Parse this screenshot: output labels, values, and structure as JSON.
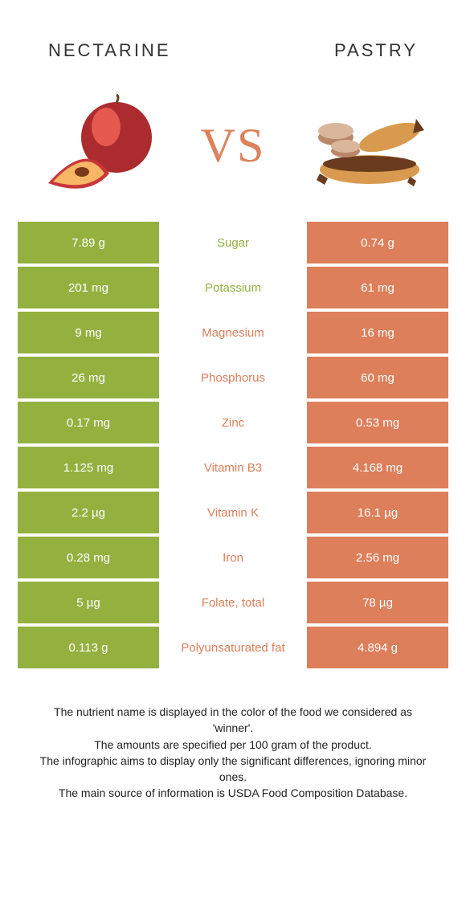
{
  "colors": {
    "left": "#94b140",
    "right": "#dc7f5a",
    "mid_left_text": "#94b140",
    "mid_right_text": "#dc7f5a"
  },
  "header": {
    "left": "NECTARINE",
    "right": "PASTRY"
  },
  "vs": "VS",
  "rows": [
    {
      "left": "7.89 g",
      "label": "Sugar",
      "right": "0.74 g",
      "winner": "left"
    },
    {
      "left": "201 mg",
      "label": "Potassium",
      "right": "61 mg",
      "winner": "left"
    },
    {
      "left": "9 mg",
      "label": "Magnesium",
      "right": "16 mg",
      "winner": "right"
    },
    {
      "left": "26 mg",
      "label": "Phosphorus",
      "right": "60 mg",
      "winner": "right"
    },
    {
      "left": "0.17 mg",
      "label": "Zinc",
      "right": "0.53 mg",
      "winner": "right"
    },
    {
      "left": "1.125 mg",
      "label": "Vitamin B3",
      "right": "4.168 mg",
      "winner": "right"
    },
    {
      "left": "2.2 µg",
      "label": "Vitamin K",
      "right": "16.1 µg",
      "winner": "right"
    },
    {
      "left": "0.28 mg",
      "label": "Iron",
      "right": "2.56 mg",
      "winner": "right"
    },
    {
      "left": "5 µg",
      "label": "Folate, total",
      "right": "78 µg",
      "winner": "right"
    },
    {
      "left": "0.113 g",
      "label": "Polyunsaturated fat",
      "right": "4.894 g",
      "winner": "right"
    }
  ],
  "footnotes": [
    "The nutrient name is displayed in the color of the food we considered as 'winner'.",
    "The amounts are specified per 100 gram of the product.",
    "The infographic aims to display only the significant differences, ignoring minor ones.",
    "The main source of information is USDA Food Composition Database."
  ]
}
